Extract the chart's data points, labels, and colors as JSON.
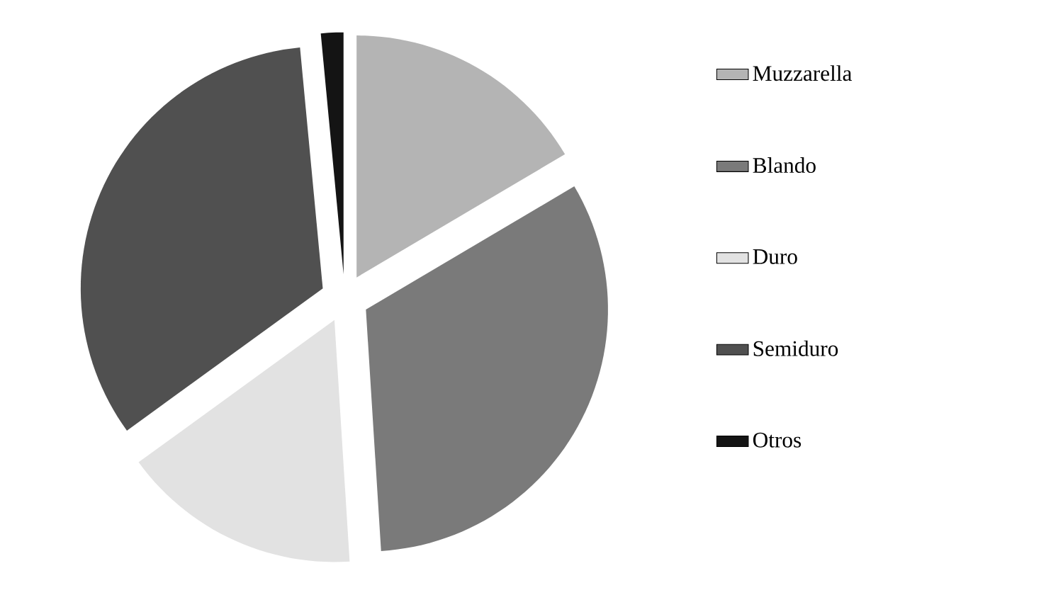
{
  "chart_data": {
    "type": "pie",
    "categories": [
      "Muzzarella",
      "Blando",
      "Duro",
      "Semiduro",
      "Otros"
    ],
    "values": [
      16.5,
      32.5,
      16,
      33.5,
      1.5
    ],
    "colors": [
      "#b4b4b4",
      "#7a7a7a",
      "#e2e2e2",
      "#505050",
      "#141414"
    ],
    "legend": "right"
  }
}
